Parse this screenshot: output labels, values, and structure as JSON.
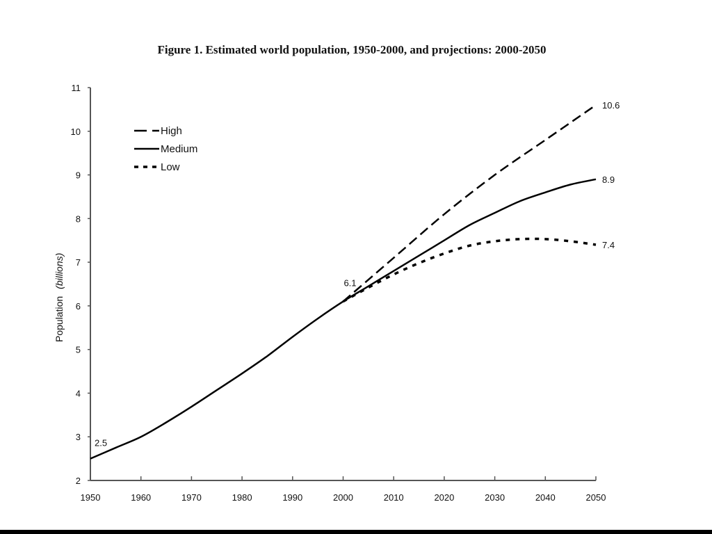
{
  "chart_data": {
    "type": "line",
    "title": "Figure 1. Estimated world population, 1950-2000, and projections: 2000-2050",
    "xlabel": "",
    "ylabel": "Population",
    "ylabel_unit": "(billions)",
    "xlim": [
      1950,
      2050
    ],
    "ylim": [
      2,
      11
    ],
    "x_ticks": [
      1950,
      1960,
      1970,
      1980,
      1990,
      2000,
      2010,
      2020,
      2030,
      2040,
      2050
    ],
    "y_ticks": [
      2,
      3,
      4,
      5,
      6,
      7,
      8,
      9,
      10,
      11
    ],
    "grid": false,
    "legend_placement": "top-left",
    "series": [
      {
        "name": "High",
        "style": "dashed",
        "x": [
          2000,
          2010,
          2020,
          2030,
          2040,
          2050
        ],
        "values": [
          6.1,
          7.1,
          8.1,
          9.0,
          9.8,
          10.6
        ]
      },
      {
        "name": "Medium",
        "style": "solid",
        "x": [
          1950,
          1955,
          1960,
          1965,
          1970,
          1975,
          1980,
          1985,
          1990,
          1995,
          2000,
          2005,
          2010,
          2015,
          2020,
          2025,
          2030,
          2035,
          2040,
          2045,
          2050
        ],
        "values": [
          2.5,
          2.75,
          3.0,
          3.33,
          3.69,
          4.07,
          4.45,
          4.85,
          5.29,
          5.71,
          6.1,
          6.45,
          6.8,
          7.15,
          7.5,
          7.85,
          8.13,
          8.4,
          8.6,
          8.78,
          8.9
        ]
      },
      {
        "name": "Low",
        "style": "dotted",
        "x": [
          2000,
          2005,
          2010,
          2015,
          2020,
          2025,
          2030,
          2035,
          2040,
          2045,
          2050
        ],
        "values": [
          6.1,
          6.42,
          6.72,
          6.98,
          7.2,
          7.38,
          7.48,
          7.53,
          7.53,
          7.48,
          7.4
        ]
      }
    ],
    "annotations": [
      {
        "text": "2.5",
        "x": 1950,
        "y": 2.5
      },
      {
        "text": "6.1",
        "x": 2000,
        "y": 6.1
      },
      {
        "text": "10.6",
        "x": 2050,
        "y": 10.6,
        "series": "High"
      },
      {
        "text": "8.9",
        "x": 2050,
        "y": 8.9,
        "series": "Medium"
      },
      {
        "text": "7.4",
        "x": 2050,
        "y": 7.4,
        "series": "Low"
      }
    ]
  }
}
